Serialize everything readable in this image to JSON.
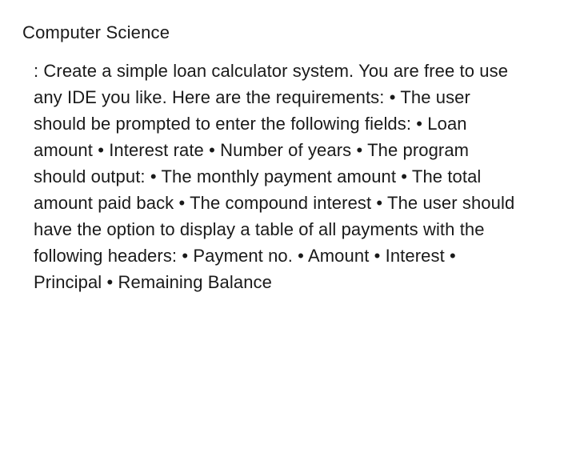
{
  "heading": "Computer Science",
  "body": ": Create a simple loan calculator system. You are free to use any IDE you like. Here are the requirements: • The user should be prompted to enter the following fields: • Loan amount • Interest rate • Number of years • The program should output: • The monthly payment amount • The total amount paid back • The compound interest • The user should have the option to display a table of all payments with the following headers: • Payment no. • Amount • Interest • Principal • Remaining Balance",
  "colors": {
    "background": "#ffffff",
    "text": "#1a1a1a"
  },
  "typography": {
    "heading_fontsize": 22,
    "body_fontsize": 22,
    "body_lineheight": 1.5,
    "font_family": "-apple-system, sans-serif",
    "font_weight": 400
  }
}
